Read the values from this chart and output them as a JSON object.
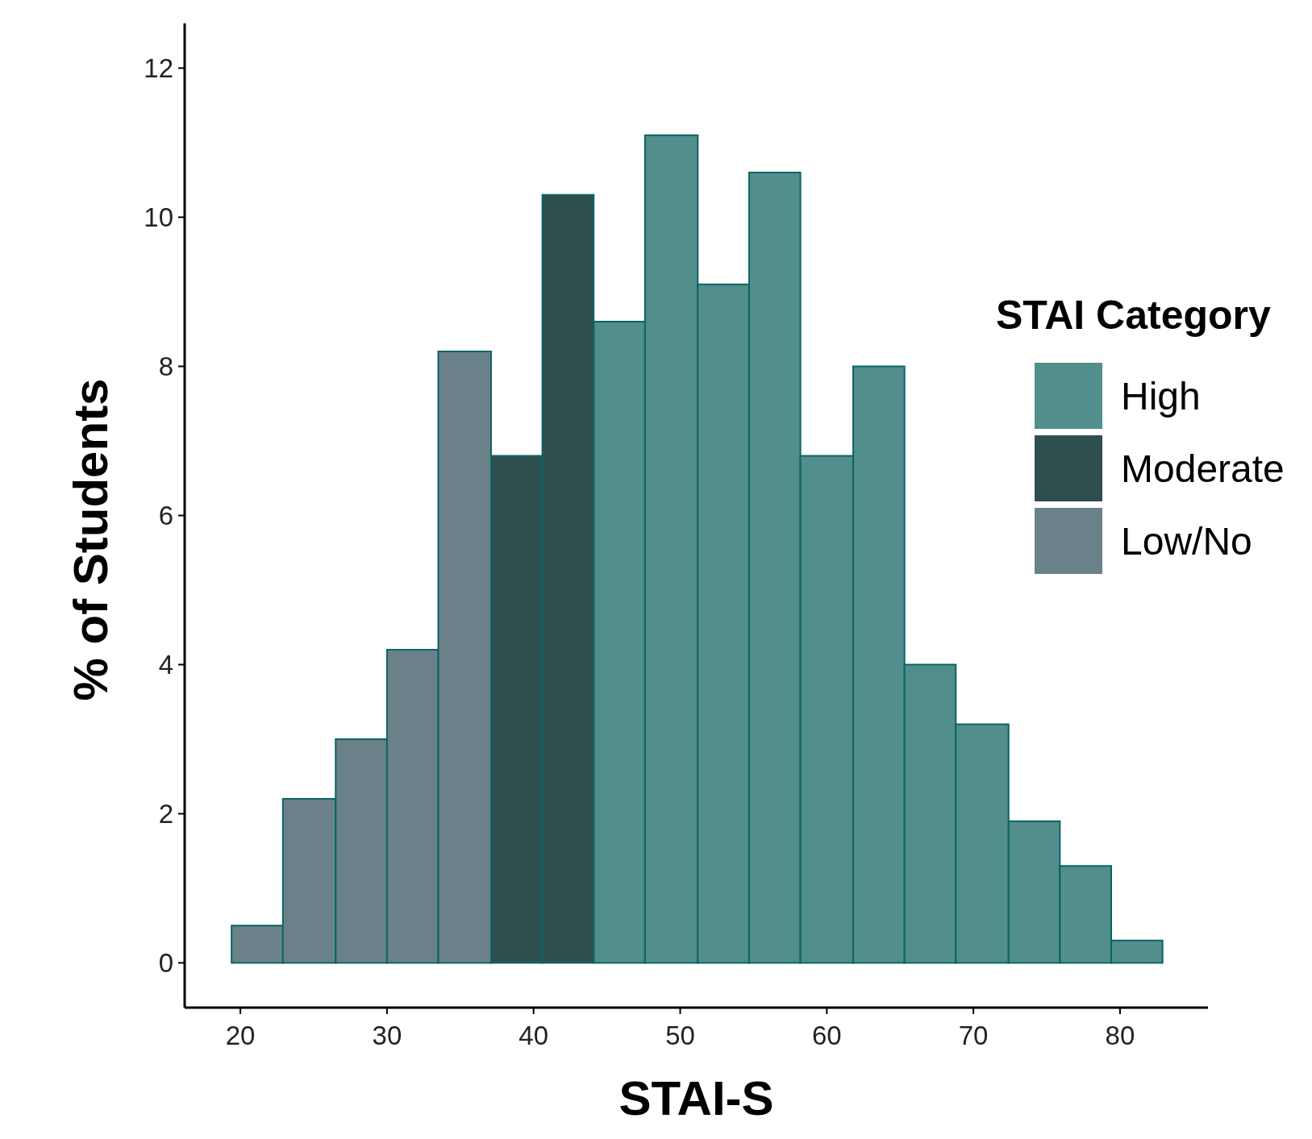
{
  "chart_data": {
    "type": "histogram",
    "xlabel": "STAI-S",
    "ylabel": "% of Students",
    "legend_title": "STAI Category",
    "bins": [
      19.4,
      22.9,
      26.5,
      30.0,
      33.5,
      37.1,
      40.6,
      44.1,
      47.6,
      51.2,
      54.7,
      58.2,
      61.8,
      65.3,
      68.8,
      72.4,
      75.9,
      79.4,
      82.9
    ],
    "series": [
      {
        "name": "High",
        "color": "#528e8c",
        "values": [
          null,
          null,
          null,
          null,
          null,
          null,
          null,
          8.6,
          11.1,
          9.1,
          10.6,
          6.8,
          8.0,
          4.0,
          3.2,
          1.9,
          1.3,
          0.3
        ]
      },
      {
        "name": "Moderate",
        "color": "#2f4f4f",
        "values": [
          null,
          null,
          null,
          null,
          null,
          6.8,
          10.3,
          null,
          null,
          null,
          null,
          null,
          null,
          null,
          null,
          null,
          null,
          null
        ]
      },
      {
        "name": "Low/No",
        "color": "#6b8189",
        "values": [
          0.5,
          2.2,
          3.0,
          4.2,
          8.2,
          null,
          null,
          null,
          null,
          null,
          null,
          null,
          null,
          null,
          null,
          null,
          null,
          null
        ]
      }
    ],
    "xlim": [
      16.2,
      86.0
    ],
    "xticks": [
      20,
      30,
      40,
      50,
      60,
      70,
      80
    ],
    "ylim": [
      -0.6,
      12.6
    ],
    "yticks": [
      0,
      2,
      4,
      6,
      8,
      10,
      12
    ],
    "grid": false,
    "legend": "right"
  }
}
